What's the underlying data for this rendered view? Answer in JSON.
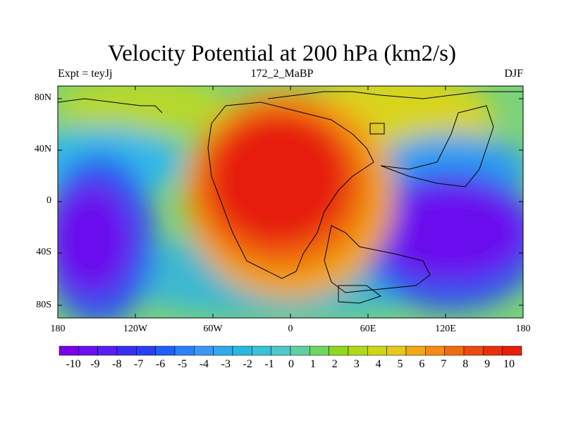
{
  "title": "Velocity Potential at 200 hPa (km2/s)",
  "subtitle_left": "Expt = teyJj",
  "subtitle_center": "172_2_MaBP",
  "subtitle_right": "DJF",
  "x_ticks": [
    "180",
    "120W",
    "60W",
    "0",
    "60E",
    "120E",
    "180"
  ],
  "y_ticks": [
    "80N",
    "40N",
    "0",
    "40S",
    "80S"
  ],
  "colorbar_labels": [
    "-10",
    "-9",
    "-8",
    "-7",
    "-6",
    "-5",
    "-4",
    "-3",
    "-2",
    "-1",
    "0",
    "1",
    "2",
    "3",
    "4",
    "5",
    "6",
    "7",
    "8",
    "9",
    "10"
  ],
  "colors": {
    "palette": [
      "#7b00e6",
      "#6a10ee",
      "#5a1ef2",
      "#3a2ef0",
      "#2a3ef5",
      "#1f5ff8",
      "#2a80fa",
      "#3a98f5",
      "#30aaea",
      "#2ab8e0",
      "#3ac0d8",
      "#50c8c8",
      "#60d0a0",
      "#6fd660",
      "#8ed820",
      "#b0d818",
      "#d0d41a",
      "#e6c81a",
      "#f0a818",
      "#f58a14",
      "#f06a10",
      "#ec4a0e",
      "#e8300c",
      "#e61e0a"
    ],
    "ocean_min": "#7b00e6",
    "land_max": "#e61e0a"
  }
}
